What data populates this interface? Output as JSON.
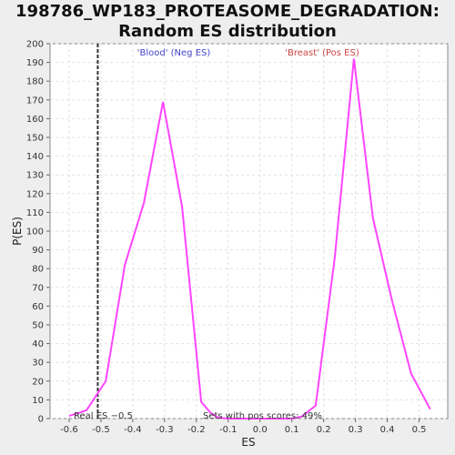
{
  "title_line1": "198786_WP183_PROTEASOME_DEGRADATION:",
  "title_line2": "Random ES distribution",
  "chart_data": {
    "type": "line",
    "title": "198786_WP183_PROTEASOME_DEGRADATION: Random ES distribution",
    "xlabel": "ES",
    "ylabel": "P(ES)",
    "xlim": [
      -0.66,
      0.59
    ],
    "ylim": [
      0,
      200
    ],
    "x_ticks": [
      -0.6,
      -0.5,
      -0.4,
      -0.3,
      -0.2,
      -0.1,
      0.0,
      0.1,
      0.2,
      0.3,
      0.4,
      0.5
    ],
    "x_tick_labels": [
      "-0.6",
      "-0.5",
      "-0.4",
      "-0.3",
      "-0.2",
      "-0.1",
      "0.0",
      "0.1",
      "0.2",
      "0.3",
      "0.4",
      "0.5"
    ],
    "y_ticks": [
      0,
      10,
      20,
      30,
      40,
      50,
      60,
      70,
      80,
      90,
      100,
      110,
      120,
      130,
      140,
      150,
      160,
      170,
      180,
      190,
      200
    ],
    "grid": true,
    "series": [
      {
        "color": "#ff44ff",
        "x": [
          -0.6,
          -0.57,
          -0.545,
          -0.485,
          -0.425,
          -0.365,
          -0.305,
          -0.245,
          -0.185,
          -0.155,
          -0.13,
          -0.1,
          0.0,
          0.1,
          0.13,
          0.175,
          0.235,
          0.295,
          0.355,
          0.415,
          0.475,
          0.535
        ],
        "y": [
          1.5,
          3,
          4.5,
          20,
          82,
          115,
          169,
          113,
          9,
          3,
          0.5,
          0,
          0,
          0,
          1,
          7,
          86,
          192,
          107,
          63,
          24,
          5
        ]
      }
    ],
    "real_es_line": {
      "x": -0.51,
      "color": "#333333",
      "style": "dashed"
    },
    "annotations": {
      "neg_label": "'Blood' (Neg ES)",
      "neg_color": "#4444cc",
      "pos_label": "'Breast' (Pos ES)",
      "pos_color": "#cc4444",
      "real_es_label": "Real ES −0.5",
      "sets_label": "Sets with pos scores: 49%"
    }
  }
}
